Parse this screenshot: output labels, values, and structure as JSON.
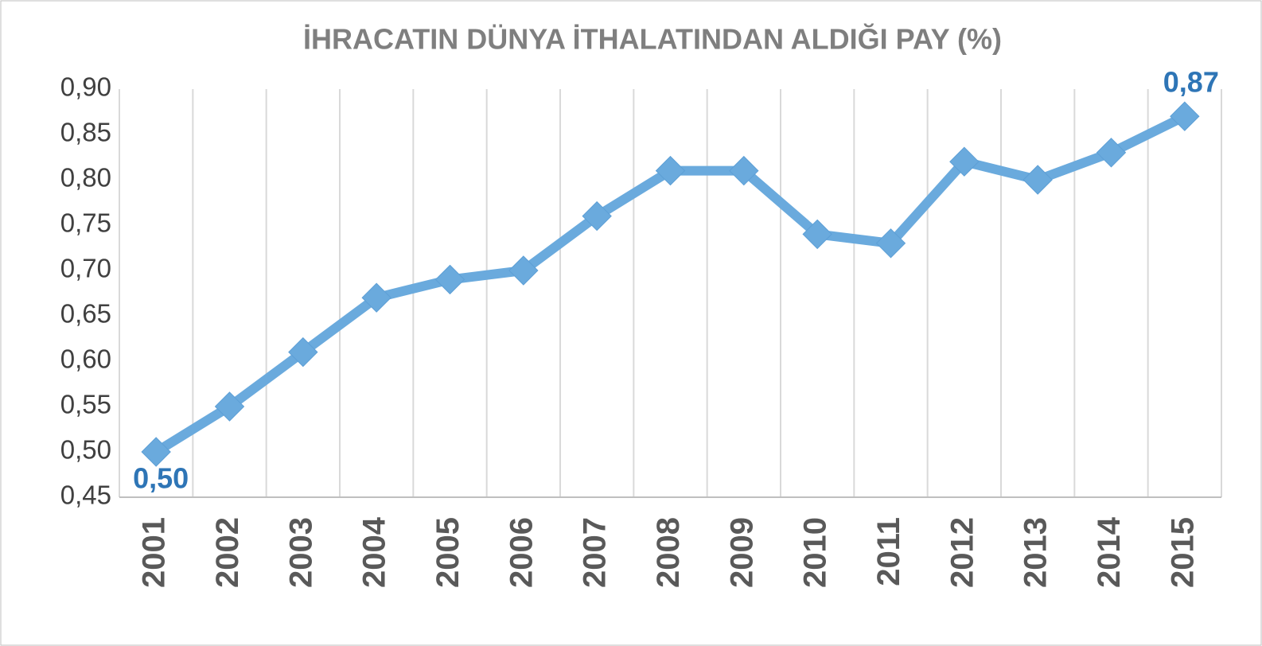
{
  "chart_data": {
    "type": "line",
    "title": "İHRACATIN DÜNYA İTHALATINDAN ALDIĞI PAY (%)",
    "categories": [
      "2001",
      "2002",
      "2003",
      "2004",
      "2005",
      "2006",
      "2007",
      "2008",
      "2009",
      "2010",
      "2011",
      "2012",
      "2013",
      "2014",
      "2015"
    ],
    "series": [
      {
        "name": "İHRACATIN DÜNYA İTHALATINDAN ALDIĞI PAY (%)",
        "color": "#6aaadd",
        "values": [
          0.5,
          0.55,
          0.61,
          0.67,
          0.69,
          0.7,
          0.76,
          0.81,
          0.81,
          0.74,
          0.73,
          0.82,
          0.8,
          0.83,
          0.87
        ],
        "value_labels": [
          "0,50",
          null,
          null,
          null,
          null,
          null,
          null,
          null,
          null,
          null,
          null,
          null,
          null,
          null,
          "0,87"
        ]
      }
    ],
    "ylim": [
      0.45,
      0.9
    ],
    "yticks": [
      {
        "value": 0.45,
        "label": "0,45"
      },
      {
        "value": 0.5,
        "label": "0,50"
      },
      {
        "value": 0.55,
        "label": "0,55"
      },
      {
        "value": 0.6,
        "label": "0,60"
      },
      {
        "value": 0.65,
        "label": "0,65"
      },
      {
        "value": 0.7,
        "label": "0,70"
      },
      {
        "value": 0.75,
        "label": "0,75"
      },
      {
        "value": 0.8,
        "label": "0,80"
      },
      {
        "value": 0.85,
        "label": "0,85"
      },
      {
        "value": 0.9,
        "label": "0,90"
      }
    ],
    "grid": "vertical"
  }
}
